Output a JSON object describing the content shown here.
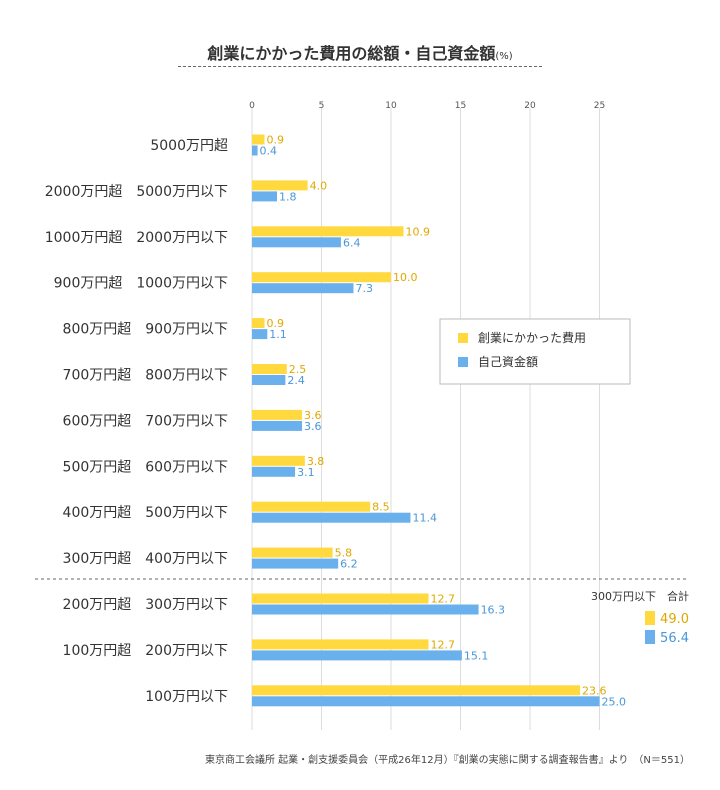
{
  "title": "創業にかかった費用の総額・自己資金額",
  "title_unit": "(%)",
  "source": "東京商工会議所 起業・創支援委員会（平成26年12月）『創業の実態に関する調査報告書』より　（N＝551）",
  "colors": {
    "series_1": "#FFD93D",
    "series_2": "#6AB0EC",
    "series_1_text": "#E0A800",
    "series_2_text": "#4A97DA",
    "grid": "#DDDDDD"
  },
  "chart_data": {
    "type": "bar",
    "orientation": "horizontal",
    "xlim": [
      0,
      25
    ],
    "x_ticks": [
      0,
      5,
      10,
      15,
      20,
      25
    ],
    "x_tick_labels": [
      "0",
      "5",
      "10",
      "15",
      "20",
      "25"
    ],
    "categories": [
      "5000万円超",
      "2000万円超　5000万円以下",
      "1000万円超　2000万円以下",
      "900万円超　1000万円以下",
      "800万円超　900万円以下",
      "700万円超　800万円以下",
      "600万円超　700万円以下",
      "500万円超　600万円以下",
      "400万円超　500万円以下",
      "300万円超　400万円以下",
      "200万円超　300万円以下",
      "100万円超　200万円以下",
      "100万円以下"
    ],
    "series": [
      {
        "name": "創業にかかった費用",
        "values": [
          0.9,
          4.0,
          10.9,
          10.0,
          0.9,
          2.5,
          3.6,
          3.8,
          8.5,
          5.8,
          12.7,
          12.7,
          23.6
        ],
        "labels": [
          "0.9",
          "4.0",
          "10.9",
          "10.0",
          "0.9",
          "2.5",
          "3.6",
          "3.8",
          "8.5",
          "5.8",
          "12.7",
          "12.7",
          "23.6"
        ]
      },
      {
        "name": "自己資金額",
        "values": [
          0.4,
          1.8,
          6.4,
          7.3,
          1.1,
          2.4,
          3.6,
          3.1,
          11.4,
          6.2,
          16.3,
          15.1,
          25.0
        ],
        "labels": [
          "0.4",
          "1.8",
          "6.4",
          "7.3",
          "1.1",
          "2.4",
          "3.6",
          "3.1",
          "11.4",
          "6.2",
          "16.3",
          "15.1",
          "25.0"
        ]
      }
    ],
    "legend_position": "right",
    "grid": true,
    "summary": {
      "title": "300万円以下　合計",
      "values": [
        "49.0",
        "56.4"
      ]
    }
  }
}
